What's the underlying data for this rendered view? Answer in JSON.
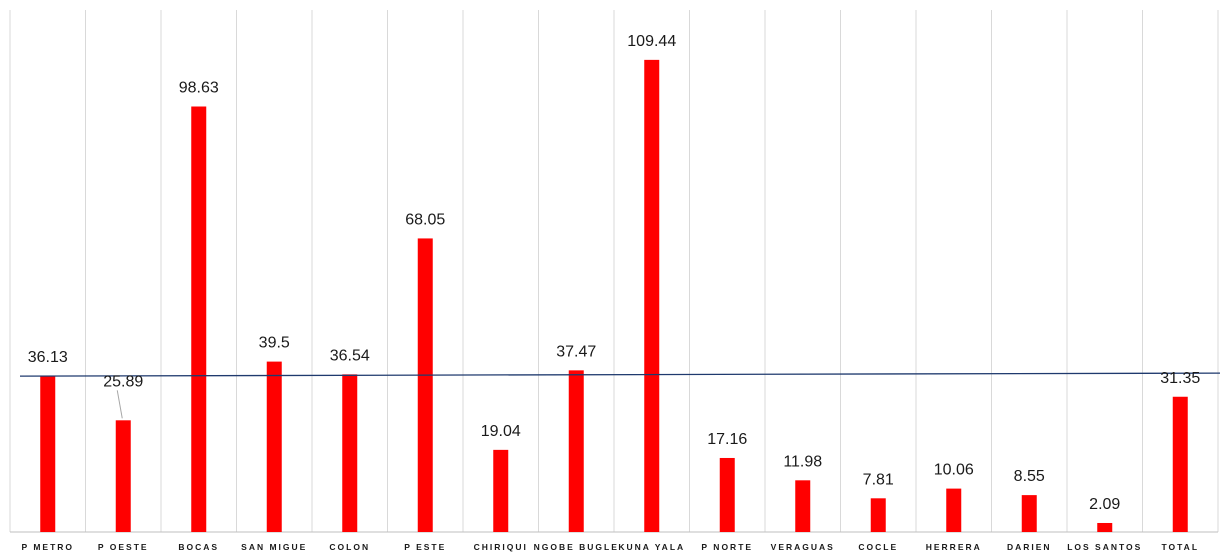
{
  "chart_data": {
    "type": "bar",
    "title": "",
    "xlabel": "",
    "ylabel": "",
    "categories": [
      "P METRO",
      "P OESTE",
      "BOCAS",
      "SAN MIGUE",
      "COLON",
      "P ESTE",
      "CHIRIQUI",
      "NGOBE BUGLE",
      "KUNA YALA",
      "P NORTE",
      "VERAGUAS",
      "COCLE",
      "HERRERA",
      "DARIEN",
      "LOS SANTOS",
      "TOTAL"
    ],
    "values": [
      36.13,
      25.89,
      98.63,
      39.5,
      36.54,
      68.05,
      19.04,
      37.47,
      109.44,
      17.16,
      11.98,
      7.81,
      10.06,
      8.55,
      2.09,
      31.35
    ],
    "value_labels": [
      "36.13",
      "25.89",
      "98.63",
      "39.5",
      "36.54",
      "68.05",
      "19.04",
      "37.47",
      "109.44",
      "17.16",
      "11.98",
      "7.81",
      "10.06",
      "8.55",
      "2.09",
      "31.35"
    ],
    "reference_line": 36.13,
    "ylim": [
      0,
      121
    ],
    "grid": "vertical",
    "legend": "none",
    "colors": {
      "bar": "#ff0000",
      "reference_line": "#1f3a6e",
      "grid": "#d9d9d9",
      "axis": "#bfbfbf"
    }
  }
}
